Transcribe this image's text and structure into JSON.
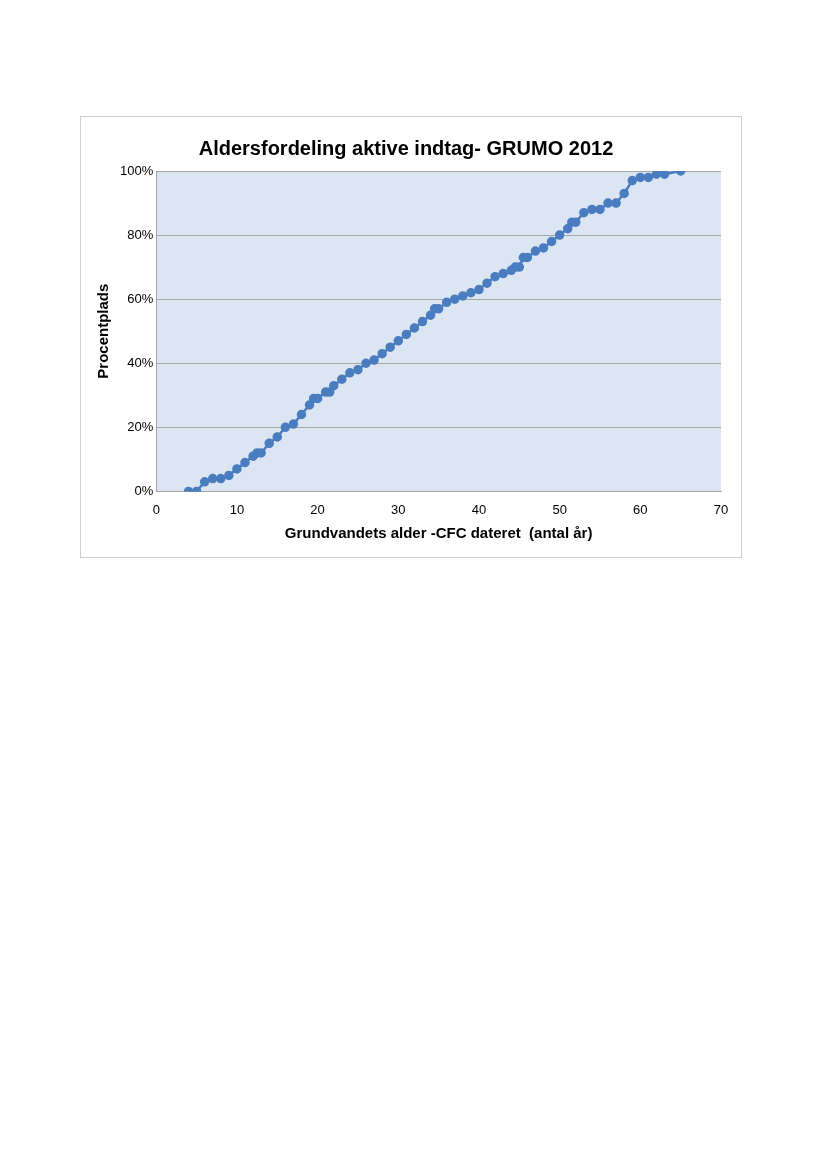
{
  "chart_data": {
    "type": "line",
    "title": "Aldersfordeling aktive indtag- GRUMO 2012",
    "xlabel": "Grundvandets alder -CFC dateret  (antal år)",
    "ylabel": "Procentplads",
    "x": [
      4,
      5,
      6,
      7,
      8,
      9,
      10,
      11,
      12,
      12.5,
      13,
      14,
      15,
      16,
      17,
      18,
      19,
      19.5,
      20,
      21,
      21.5,
      22,
      23,
      24,
      25,
      26,
      27,
      28,
      29,
      30,
      31,
      32,
      33,
      34,
      34.5,
      35,
      36,
      37,
      38,
      39,
      40,
      41,
      42,
      43,
      44,
      44.5,
      45,
      45.5,
      46,
      47,
      48,
      49,
      50,
      51,
      51.5,
      52,
      53,
      54,
      55,
      56,
      57,
      58,
      59,
      60,
      61,
      62,
      63,
      65
    ],
    "series": [
      {
        "color": "#4a7cc0",
        "values": [
          0,
          0,
          3,
          4,
          4,
          5,
          7,
          9,
          11,
          12,
          12,
          15,
          17,
          20,
          21,
          24,
          27,
          29,
          29,
          31,
          31,
          33,
          35,
          37,
          38,
          40,
          41,
          43,
          45,
          47,
          49,
          51,
          53,
          55,
          57,
          57,
          59,
          60,
          61,
          62,
          63,
          65,
          67,
          68,
          69,
          70,
          70,
          73,
          73,
          75,
          76,
          78,
          80,
          82,
          84,
          84,
          87,
          88,
          88,
          90,
          90,
          93,
          97,
          98,
          98,
          99,
          99,
          100
        ]
      }
    ],
    "xlim": [
      0,
      70
    ],
    "xticks": [
      0,
      10,
      20,
      30,
      40,
      50,
      60,
      70
    ],
    "ylim": [
      0,
      100
    ],
    "yticks": [
      {
        "value": 0,
        "label": "0%"
      },
      {
        "value": 20,
        "label": "20%"
      },
      {
        "value": 40,
        "label": "40%"
      },
      {
        "value": 60,
        "label": "60%"
      },
      {
        "value": 80,
        "label": "80%"
      },
      {
        "value": 100,
        "label": "100%"
      }
    ],
    "grid": "y",
    "marker": "circle",
    "line_style": "solid",
    "legend": false
  }
}
